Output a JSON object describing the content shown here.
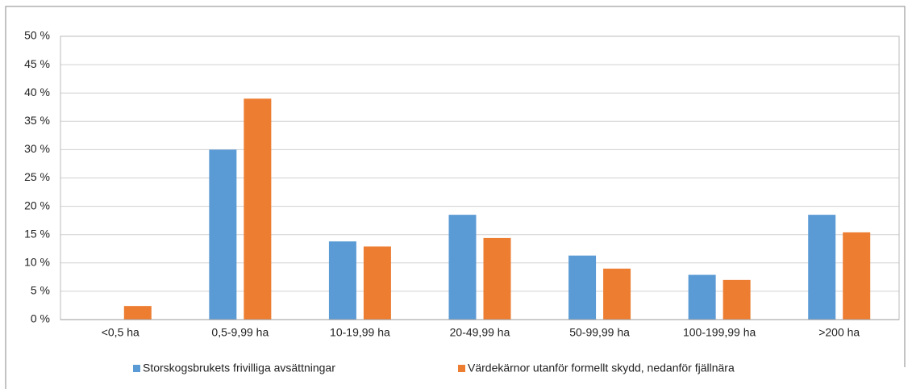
{
  "chart_data": {
    "type": "bar",
    "categories": [
      "<0,5 ha",
      "0,5-9,99 ha",
      "10-19,99 ha",
      "20-49,99 ha",
      "50-99,99 ha",
      "100-199,99 ha",
      ">200 ha"
    ],
    "series": [
      {
        "name": "Storskogsbrukets frivilliga avsättningar",
        "color": "#5b9bd5",
        "values": [
          0,
          30,
          13.8,
          18.5,
          11.3,
          7.9,
          18.5
        ]
      },
      {
        "name": "Värdekärnor utanför formellt skydd, nedanför fjällnära",
        "color": "#ed7d31",
        "values": [
          2.4,
          39,
          12.9,
          14.4,
          9.0,
          7.0,
          15.4
        ]
      }
    ],
    "ylim": [
      0,
      50
    ],
    "yticks": [
      {
        "value": 0,
        "label": "0 %"
      },
      {
        "value": 5,
        "label": "5 %"
      },
      {
        "value": 10,
        "label": "10 %"
      },
      {
        "value": 15,
        "label": "15 %"
      },
      {
        "value": 20,
        "label": "20 %"
      },
      {
        "value": 25,
        "label": "25 %"
      },
      {
        "value": 30,
        "label": "30 %"
      },
      {
        "value": 35,
        "label": "35 %"
      },
      {
        "value": 40,
        "label": "40 %"
      },
      {
        "value": 45,
        "label": "45 %"
      },
      {
        "value": 50,
        "label": "50 %"
      }
    ],
    "grid": true,
    "legend": "bottom"
  }
}
